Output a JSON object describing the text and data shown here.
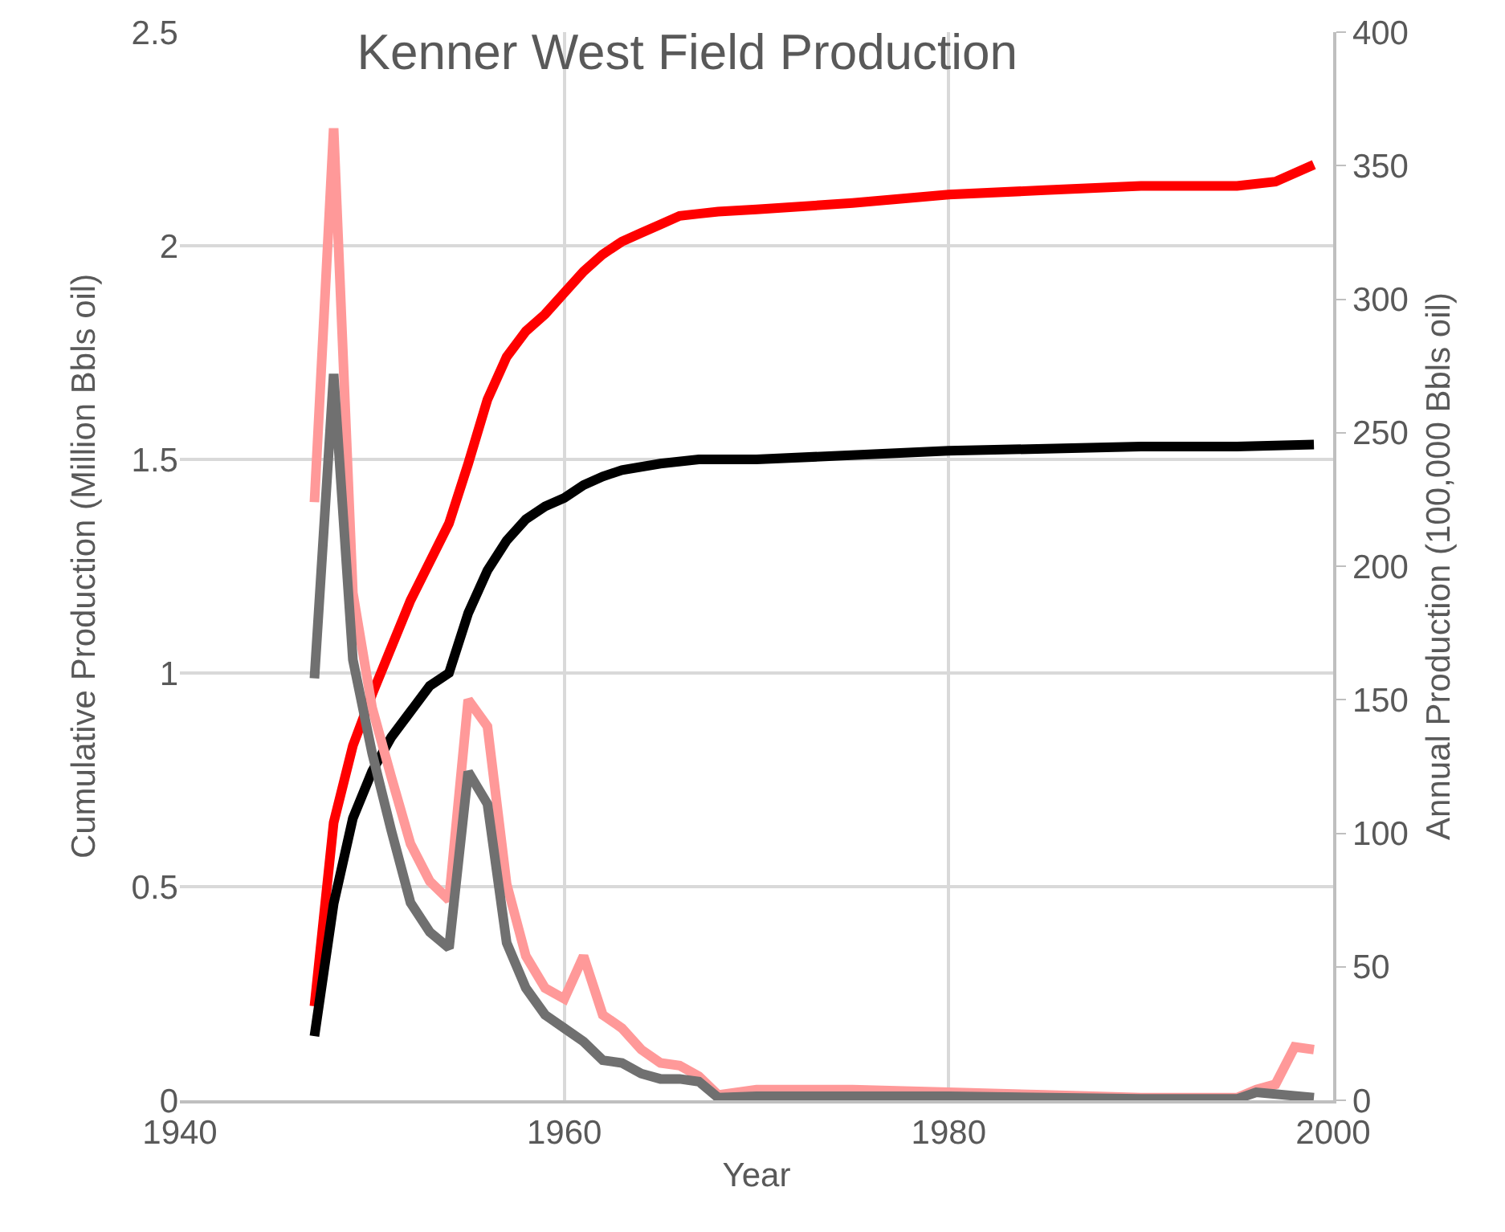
{
  "chart_data": {
    "type": "line",
    "title": "Kenner West Field Production",
    "xlabel": "Year",
    "ylabel": "Cumulative Production (Million Bbls oil)",
    "y2label": "Annual Production (100,000 Bbls oil)",
    "xlim": [
      1940,
      2000
    ],
    "xticks": [
      1940,
      1960,
      1980,
      2000
    ],
    "ylim": [
      0,
      2.5
    ],
    "yticks": [
      0,
      0.5,
      1,
      1.5,
      2,
      2.5
    ],
    "y2lim": [
      0,
      400
    ],
    "y2ticks": [
      0,
      50,
      100,
      150,
      200,
      250,
      300,
      350,
      400
    ],
    "grid": true,
    "marker": "none",
    "line_style": "solid",
    "series": [
      {
        "color": "#ff0000",
        "x": [
          1947,
          1948,
          1949,
          1950,
          1951,
          1952,
          1953,
          1954,
          1955,
          1956,
          1957,
          1958,
          1959,
          1960,
          1961,
          1962,
          1963,
          1964,
          1965,
          1966,
          1967,
          1968,
          1970,
          1975,
          1980,
          1985,
          1990,
          1995,
          1997,
          1999
        ],
        "values": [
          0.22,
          0.65,
          0.83,
          0.95,
          1.06,
          1.17,
          1.26,
          1.35,
          1.49,
          1.64,
          1.74,
          1.8,
          1.84,
          1.89,
          1.94,
          1.98,
          2.01,
          2.03,
          2.05,
          2.07,
          2.075,
          2.08,
          2.085,
          2.1,
          2.12,
          2.13,
          2.14,
          2.14,
          2.15,
          2.19
        ]
      },
      {
        "color": "#000000",
        "x": [
          1947,
          1948,
          1949,
          1950,
          1951,
          1952,
          1953,
          1954,
          1955,
          1956,
          1957,
          1958,
          1959,
          1960,
          1961,
          1962,
          1963,
          1965,
          1967,
          1970,
          1980,
          1990,
          1995,
          1999
        ],
        "values": [
          0.15,
          0.46,
          0.66,
          0.77,
          0.85,
          0.91,
          0.97,
          1.0,
          1.14,
          1.24,
          1.31,
          1.36,
          1.39,
          1.41,
          1.44,
          1.46,
          1.475,
          1.49,
          1.5,
          1.5,
          1.52,
          1.53,
          1.53,
          1.535
        ]
      },
      {
        "color": "#ff9999",
        "axis": "y2",
        "x": [
          1947,
          1948,
          1949,
          1950,
          1951,
          1952,
          1953,
          1954,
          1955,
          1956,
          1957,
          1958,
          1959,
          1960,
          1961,
          1962,
          1963,
          1964,
          1965,
          1966,
          1967,
          1968,
          1970,
          1975,
          1980,
          1985,
          1990,
          1995,
          1996,
          1997,
          1998,
          1999
        ],
        "values": [
          224,
          364,
          190,
          147,
          121,
          96,
          82,
          75,
          150,
          140,
          81,
          54,
          42,
          38,
          54,
          32,
          27,
          19,
          14,
          13,
          9,
          2,
          4,
          4,
          3,
          2,
          1,
          1,
          4,
          6,
          20,
          19
        ]
      },
      {
        "color": "#707070",
        "axis": "y2",
        "x": [
          1947,
          1948,
          1949,
          1950,
          1951,
          1952,
          1953,
          1954,
          1955,
          1956,
          1957,
          1958,
          1959,
          1960,
          1961,
          1962,
          1963,
          1964,
          1965,
          1966,
          1967,
          1968,
          1970,
          1980,
          1990,
          1995,
          1996,
          1999
        ],
        "values": [
          158,
          272,
          165,
          130,
          101,
          74,
          63,
          57,
          123,
          111,
          59,
          42,
          32,
          27,
          22,
          15,
          14,
          10,
          8,
          8,
          7,
          1,
          1.5,
          1.5,
          0.5,
          0.5,
          3,
          1
        ]
      }
    ]
  }
}
